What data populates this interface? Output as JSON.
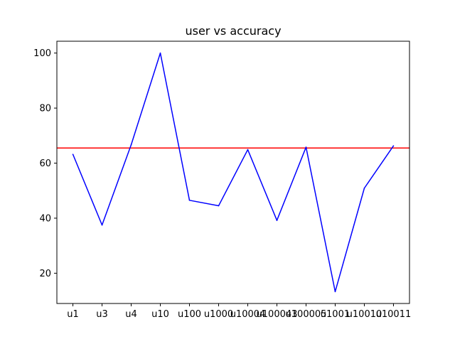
{
  "chart_data": {
    "type": "line",
    "title": "user vs accuracy",
    "xlabel": "",
    "ylabel": "",
    "categories": [
      "u1",
      "u3",
      "u4",
      "u10",
      "u100",
      "u1000",
      "u10004",
      "u100043",
      "u100005",
      "u1001",
      "u10010",
      "u10011"
    ],
    "series": [
      {
        "color": "#0000ff",
        "values": [
          63.2,
          37.5,
          66.7,
          100.0,
          46.5,
          44.5,
          64.9,
          39.2,
          65.8,
          13.3,
          50.9,
          66.3
        ]
      }
    ],
    "reference_line": {
      "value": 65.5,
      "color": "#ff0000"
    },
    "ylim": [
      9.0,
      104.3
    ],
    "yticks": [
      20,
      40,
      60,
      80,
      100
    ],
    "grid": false,
    "legend": "none"
  }
}
